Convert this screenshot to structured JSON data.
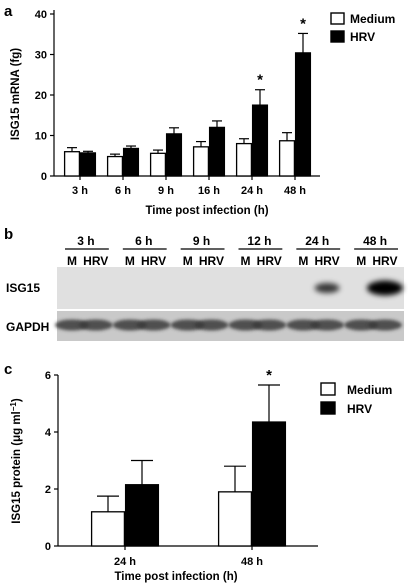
{
  "chart_data": [
    {
      "panel": "a",
      "type": "bar",
      "categories": [
        "3 h",
        "6 h",
        "9 h",
        "16 h",
        "24 h",
        "48 h"
      ],
      "series": [
        {
          "name": "Medium",
          "color": "#ffffff",
          "values": [
            6.0,
            4.8,
            5.6,
            7.2,
            8.0,
            8.7
          ],
          "errors": [
            1.0,
            0.6,
            0.8,
            1.3,
            1.2,
            2.0
          ]
        },
        {
          "name": "HRV",
          "color": "#000000",
          "values": [
            5.7,
            6.8,
            10.4,
            12.0,
            17.5,
            30.4
          ],
          "errors": [
            0.4,
            0.6,
            1.5,
            1.6,
            3.8,
            4.8
          ]
        }
      ],
      "significant": [
        "24 h",
        "48 h"
      ],
      "significance_marker": "*",
      "xlabel": "Time post infection (h)",
      "ylabel": "ISG15 mRNA (fg)",
      "ylim": [
        0,
        40
      ],
      "yticks": [
        0,
        10,
        20,
        30,
        40
      ],
      "legend_position": "top-right"
    },
    {
      "panel": "b",
      "type": "blot",
      "time_labels": [
        "3 h",
        "6 h",
        "9 h",
        "12 h",
        "24 h",
        "48 h"
      ],
      "lane_labels": [
        "M",
        "HRV"
      ],
      "rows": [
        {
          "label": "ISG15",
          "hrv_band_intensity": [
            0,
            0,
            0,
            0,
            0.45,
            1.0
          ]
        },
        {
          "label": "GAPDH",
          "hrv_band_intensity": [
            1,
            1,
            1,
            1,
            1,
            1
          ]
        }
      ]
    },
    {
      "panel": "c",
      "type": "bar",
      "categories": [
        "24 h",
        "48 h"
      ],
      "series": [
        {
          "name": "Medium",
          "color": "#ffffff",
          "values": [
            1.2,
            1.9
          ],
          "errors": [
            0.55,
            0.9
          ]
        },
        {
          "name": "HRV",
          "color": "#000000",
          "values": [
            2.15,
            4.35
          ],
          "errors": [
            0.85,
            1.3
          ]
        }
      ],
      "significant": [
        "48 h"
      ],
      "significance_marker": "*",
      "xlabel": "Time post infection (h)",
      "ylabel": "ISG15 protein (μg ml",
      "ylabel_superscript": "−1",
      "ylabel_suffix": ")",
      "ylim": [
        0,
        6
      ],
      "yticks": [
        0,
        2,
        4,
        6
      ],
      "legend_position": "top-right"
    }
  ]
}
